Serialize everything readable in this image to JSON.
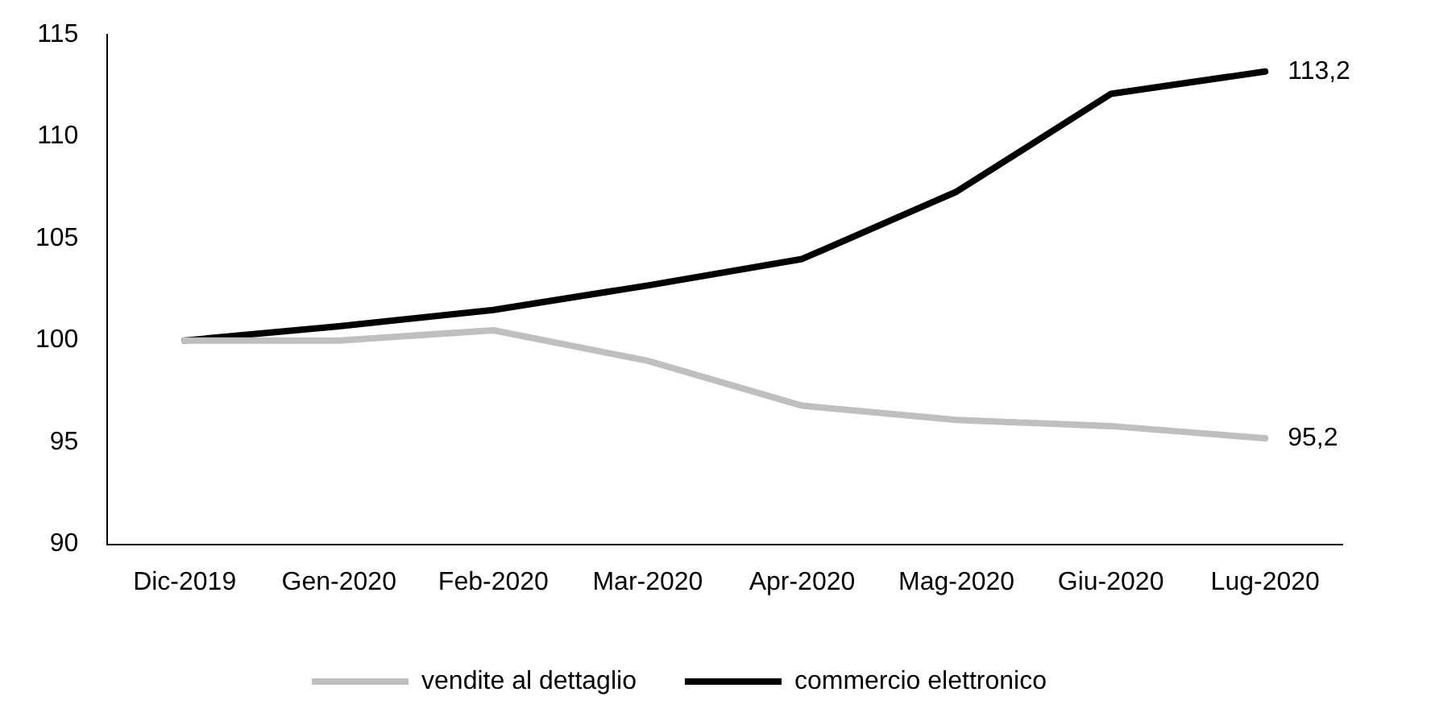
{
  "chart_data": {
    "type": "line",
    "categories": [
      "Dic-2019",
      "Gen-2020",
      "Feb-2020",
      "Mar-2020",
      "Apr-2020",
      "Mag-2020",
      "Giu-2020",
      "Lug-2020"
    ],
    "series": [
      {
        "name": "vendite al dettaglio",
        "color": "#bfbfbf",
        "values": [
          100,
          100,
          100.5,
          99,
          96.8,
          96.1,
          95.8,
          95.2
        ],
        "value_labels": [
          null,
          null,
          null,
          null,
          null,
          null,
          null,
          "95,2"
        ]
      },
      {
        "name": "commercio elettronico",
        "color": "#000000",
        "values": [
          100,
          100.7,
          101.5,
          102.7,
          104,
          107.3,
          112.1,
          113.2
        ],
        "value_labels": [
          null,
          null,
          null,
          null,
          null,
          null,
          null,
          "113,2"
        ]
      }
    ],
    "ylim": [
      90,
      115
    ],
    "yticks": [
      90,
      95,
      100,
      105,
      110,
      115
    ],
    "grid": false,
    "legend": "bottom",
    "marker": "none",
    "line_style": "solid"
  }
}
